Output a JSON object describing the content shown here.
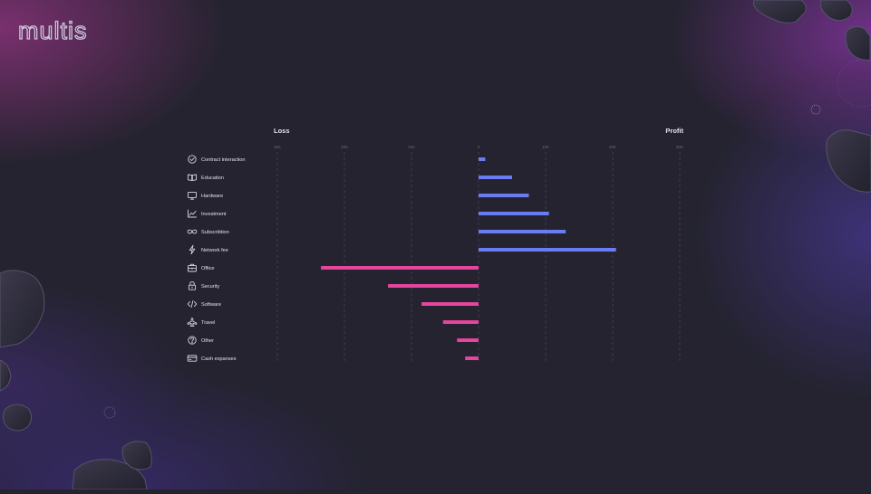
{
  "brand": {
    "logo_text": "multis"
  },
  "colors": {
    "profit_bar": "#6b7cf2",
    "loss_bar": "#e5459c",
    "grid": "#4a4858",
    "text": "#e6e3ee",
    "tick": "#6b6878"
  },
  "chart_data": {
    "type": "bar",
    "orientation": "horizontal",
    "headers": {
      "left": "Loss",
      "right": "Profit"
    },
    "tick_labels": [
      "30K",
      "20K",
      "10K",
      "0",
      "10K",
      "20K",
      "30K"
    ],
    "xlim": [
      -30000,
      30000
    ],
    "categories": [
      {
        "label": "Contract interaction",
        "icon": "check-circle-icon",
        "value": 1000
      },
      {
        "label": "Education",
        "icon": "book-icon",
        "value": 5000
      },
      {
        "label": "Hardware",
        "icon": "monitor-icon",
        "value": 7500
      },
      {
        "label": "Investment",
        "icon": "trend-up-icon",
        "value": 10500
      },
      {
        "label": "Subscribtion",
        "icon": "infinity-icon",
        "value": 13000
      },
      {
        "label": "Network fee",
        "icon": "lightning-icon",
        "value": 20500
      },
      {
        "label": "Office",
        "icon": "briefcase-icon",
        "value": -23500
      },
      {
        "label": "Security",
        "icon": "lock-icon",
        "value": -13500
      },
      {
        "label": "Software",
        "icon": "code-icon",
        "value": -8500
      },
      {
        "label": "Travel",
        "icon": "airplane-icon",
        "value": -5300
      },
      {
        "label": "Other",
        "icon": "question-circle-icon",
        "value": -3200
      },
      {
        "label": "Cash expanses",
        "icon": "card-icon",
        "value": -2000
      }
    ]
  }
}
